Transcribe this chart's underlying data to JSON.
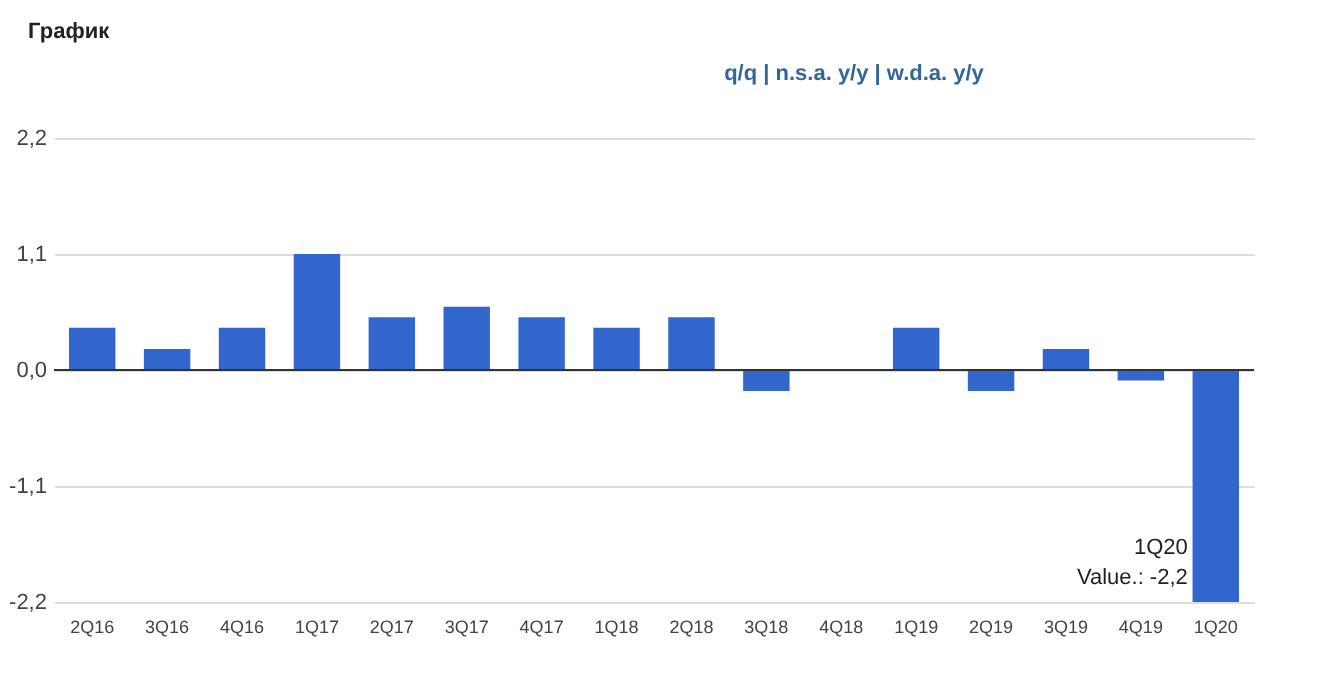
{
  "chart_data": {
    "type": "bar",
    "title": "График",
    "categories": [
      "2Q16",
      "3Q16",
      "4Q16",
      "1Q17",
      "2Q17",
      "3Q17",
      "4Q17",
      "1Q18",
      "2Q18",
      "3Q18",
      "4Q18",
      "1Q19",
      "2Q19",
      "3Q19",
      "4Q19",
      "1Q20"
    ],
    "values": [
      0.4,
      0.2,
      0.4,
      1.1,
      0.5,
      0.6,
      0.5,
      0.4,
      0.5,
      -0.2,
      0,
      0.4,
      -0.2,
      0.2,
      -0.1,
      -2.2
    ],
    "color": "#3366cc",
    "ylim": [
      -2.2,
      2.2
    ],
    "yticks": [
      {
        "value": -2.2,
        "label": "-2,2"
      },
      {
        "value": -1.1,
        "label": "-1,1"
      },
      {
        "value": 0,
        "label": "0,0"
      },
      {
        "value": 1.1,
        "label": "1,1"
      },
      {
        "value": 2.2,
        "label": "2,2"
      }
    ],
    "grid": "y",
    "annotations": [
      "q/q | n.s.a. y/y | w.d.a. y/y",
      {
        "text": "1Q20\nValue.: -2,2",
        "x": "1Q20",
        "y": -2.2
      }
    ]
  }
}
